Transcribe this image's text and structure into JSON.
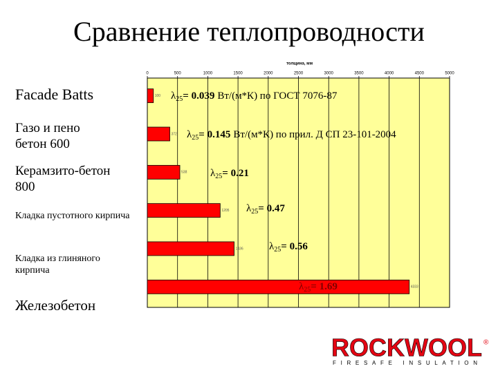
{
  "chart_data": {
    "type": "bar",
    "orientation": "horizontal",
    "title": "Сравнение теплопроводности",
    "x_label": "толщина, мм",
    "categories": [
      "Facade Batts",
      "Газо и пено бетон 600",
      "Керамзито-бетон 800",
      "Кладка пустотного кирпича",
      "Кладка из глиняного кирпича",
      "Железобетон"
    ],
    "values": [
      100,
      372,
      538,
      1205,
      1436,
      4333
    ],
    "color": "#ff0000",
    "background": "#ffff99",
    "xlim": [
      0,
      5000
    ],
    "xticks": [
      0,
      500,
      1000,
      1500,
      2000,
      2500,
      3000,
      3500,
      4000,
      4500,
      5000
    ],
    "grid": true,
    "annotations": [
      {
        "symbol": "λ",
        "subscript": "25",
        "value": "= 0.039",
        "note": "Вт/(м*К) по ГОСТ 7076-87"
      },
      {
        "symbol": "λ",
        "subscript": "25",
        "value": "= 0.145",
        "note": "Вт/(м*К) по прил. Д СП 23-101-2004"
      },
      {
        "symbol": "λ",
        "subscript": "25",
        "value": "= 0.21"
      },
      {
        "symbol": "λ",
        "subscript": "25",
        "value": "= 0.47"
      },
      {
        "symbol": "λ",
        "subscript": "25",
        "value": "= 0.56"
      },
      {
        "symbol": "λ",
        "subscript": "25",
        "value": "= 1.69"
      }
    ]
  },
  "logo": {
    "brand": "ROCKWOOL",
    "mark": "®",
    "tagline": "FIRESAFE INSULATION"
  }
}
